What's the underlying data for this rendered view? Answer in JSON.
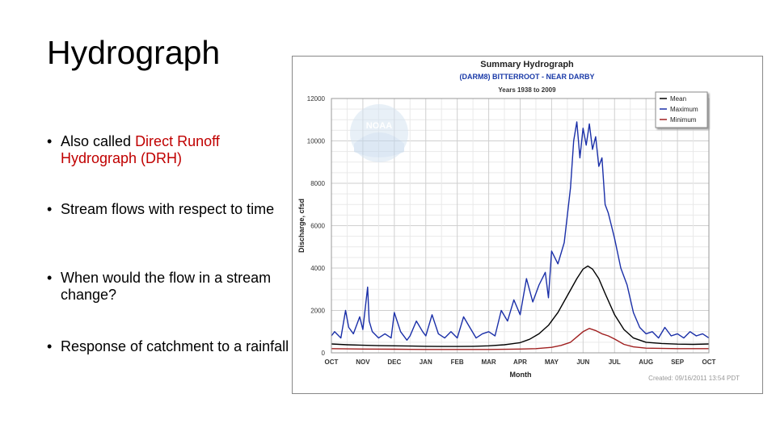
{
  "slide": {
    "title": "Hydrograph",
    "bullets": [
      {
        "plain": "Also called ",
        "highlight": "Direct Runoff Hydrograph (DRH)"
      },
      {
        "plain": "Stream flows with respect to time",
        "highlight": ""
      },
      {
        "plain": "When would the flow in a stream change?",
        "highlight": ""
      },
      {
        "plain": "Response of catchment to a rainfall",
        "highlight": ""
      }
    ]
  },
  "colors": {
    "highlight": "#c00000",
    "mean": "#000000",
    "maximum": "#1a2fa8",
    "minimum": "#a02020"
  },
  "logo": {
    "text": "NOAA"
  },
  "chart_data": {
    "type": "line",
    "title": "Summary Hydrograph",
    "subtitle": "(DARM8) BITTERROOT - NEAR DARBY",
    "subtitle2": "Years 1938 to 2009",
    "xlabel": "Month",
    "ylabel": "Discharge, cfsd",
    "credit": "Created: 09/16/2011 13:54 PDT",
    "ylim": [
      0,
      12000
    ],
    "yticks": [
      "0",
      "2000",
      "4000",
      "6000",
      "8000",
      "10000",
      "12000"
    ],
    "x_months": [
      "OCT",
      "NOV",
      "DEC",
      "JAN",
      "FEB",
      "MAR",
      "APR",
      "MAY",
      "JUN",
      "JUL",
      "AUG",
      "SEP",
      "OCT"
    ],
    "grid": true,
    "legend": [
      "Mean",
      "Maximum",
      "Minimum"
    ],
    "legend_position": "top-right",
    "series": [
      {
        "name": "Mean",
        "color": "#000000",
        "x": [
          0,
          0.5,
          1,
          1.5,
          2,
          2.5,
          3,
          3.5,
          4,
          4.5,
          5,
          5.5,
          6,
          6.3,
          6.6,
          6.9,
          7.2,
          7.5,
          7.8,
          8.0,
          8.15,
          8.3,
          8.5,
          8.7,
          9.0,
          9.3,
          9.6,
          10,
          10.5,
          11,
          11.5,
          12
        ],
        "y": [
          420,
          380,
          360,
          340,
          330,
          320,
          310,
          300,
          300,
          310,
          330,
          380,
          480,
          640,
          900,
          1300,
          1900,
          2700,
          3500,
          3950,
          4100,
          3950,
          3500,
          2800,
          1800,
          1100,
          700,
          500,
          440,
          410,
          400,
          420
        ]
      },
      {
        "name": "Maximum",
        "color": "#1a2fa8",
        "x": [
          0,
          0.1,
          0.3,
          0.45,
          0.55,
          0.7,
          0.9,
          1.0,
          1.15,
          1.2,
          1.3,
          1.5,
          1.7,
          1.9,
          2.0,
          2.2,
          2.4,
          2.5,
          2.7,
          2.9,
          3.0,
          3.2,
          3.4,
          3.6,
          3.8,
          4.0,
          4.2,
          4.4,
          4.6,
          4.8,
          5.0,
          5.2,
          5.4,
          5.6,
          5.8,
          6.0,
          6.2,
          6.4,
          6.6,
          6.8,
          6.9,
          7.0,
          7.2,
          7.4,
          7.6,
          7.7,
          7.8,
          7.9,
          8.0,
          8.1,
          8.2,
          8.3,
          8.4,
          8.5,
          8.6,
          8.7,
          8.8,
          8.9,
          9.0,
          9.2,
          9.4,
          9.6,
          9.8,
          10.0,
          10.2,
          10.4,
          10.6,
          10.8,
          11.0,
          11.2,
          11.4,
          11.6,
          11.8,
          12.0
        ],
        "y": [
          800,
          1000,
          700,
          2000,
          1200,
          900,
          1700,
          1100,
          3100,
          1500,
          1000,
          700,
          900,
          700,
          1900,
          1000,
          600,
          800,
          1500,
          1000,
          800,
          1800,
          900,
          700,
          1000,
          700,
          1700,
          1200,
          700,
          900,
          1000,
          800,
          2000,
          1500,
          2500,
          1800,
          3500,
          2400,
          3200,
          3800,
          2600,
          4800,
          4200,
          5200,
          7800,
          10000,
          10900,
          9200,
          10600,
          9800,
          10800,
          9600,
          10200,
          8800,
          9200,
          7000,
          6600,
          6000,
          5400,
          4000,
          3200,
          1900,
          1200,
          900,
          1000,
          700,
          1200,
          800,
          900,
          700,
          1000,
          800,
          900,
          700
        ]
      },
      {
        "name": "Minimum",
        "color": "#a02020",
        "x": [
          0,
          1,
          2,
          3,
          4,
          5,
          6,
          6.5,
          7.0,
          7.3,
          7.6,
          7.8,
          8.0,
          8.2,
          8.4,
          8.6,
          8.8,
          9.0,
          9.3,
          9.6,
          10,
          11,
          12
        ],
        "y": [
          200,
          180,
          170,
          160,
          160,
          160,
          180,
          200,
          260,
          350,
          500,
          750,
          1000,
          1150,
          1050,
          900,
          800,
          650,
          400,
          280,
          220,
          200,
          200
        ]
      }
    ]
  }
}
